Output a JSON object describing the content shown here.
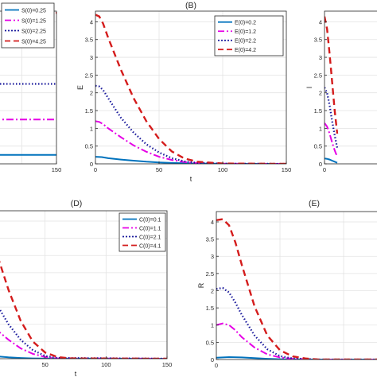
{
  "chart_data": [
    {
      "id": "A",
      "type": "line",
      "title": "",
      "xlabel": "",
      "ylabel": "",
      "xlim": [
        0,
        150
      ],
      "ylim": [
        0,
        4.3
      ],
      "xticks": [
        150
      ],
      "yticks": [],
      "grid": true,
      "legend_position": "top-right",
      "series": [
        {
          "name": "S(0)=0.25",
          "color": "#0072BD",
          "dash": "solid",
          "x": [
            0,
            150
          ],
          "y": [
            0.25,
            0.25
          ]
        },
        {
          "name": "S(0)=1.25",
          "color": "#E600E6",
          "dash": "dashdot",
          "x": [
            0,
            150
          ],
          "y": [
            1.25,
            1.25
          ]
        },
        {
          "name": "S(0)=2.25",
          "color": "#1A1A9C",
          "dash": "dotted",
          "x": [
            0,
            150
          ],
          "y": [
            2.25,
            2.25
          ]
        },
        {
          "name": "S(0)=4.25",
          "color": "#D41C1C",
          "dash": "dashed",
          "x": [
            0,
            150
          ],
          "y": [
            4.25,
            4.25
          ]
        }
      ]
    },
    {
      "id": "B",
      "type": "line",
      "title": "(B)",
      "xlabel": "t",
      "ylabel": "E",
      "xlim": [
        0,
        150
      ],
      "ylim": [
        0,
        4.3
      ],
      "xticks": [
        0,
        50,
        100,
        150
      ],
      "yticks": [
        0,
        0.5,
        1,
        1.5,
        2,
        2.5,
        3,
        3.5,
        4
      ],
      "grid": true,
      "legend_position": "top-right",
      "series": [
        {
          "name": "E(0)=0.2",
          "color": "#0072BD",
          "dash": "solid",
          "x": [
            0,
            5,
            10,
            20,
            30,
            40,
            50,
            60,
            70,
            80,
            100,
            150
          ],
          "y": [
            0.2,
            0.19,
            0.16,
            0.12,
            0.09,
            0.06,
            0.04,
            0.025,
            0.015,
            0.008,
            0.002,
            0
          ]
        },
        {
          "name": "E(0)=1.2",
          "color": "#E600E6",
          "dash": "dashdot",
          "x": [
            0,
            3,
            6,
            10,
            20,
            30,
            40,
            50,
            60,
            70,
            80,
            100,
            150
          ],
          "y": [
            1.2,
            1.18,
            1.12,
            1.0,
            0.75,
            0.52,
            0.34,
            0.2,
            0.11,
            0.05,
            0.02,
            0.003,
            0
          ]
        },
        {
          "name": "E(0)=2.2",
          "color": "#1A1A9C",
          "dash": "dotted",
          "x": [
            0,
            3,
            6,
            10,
            20,
            30,
            40,
            50,
            60,
            70,
            80,
            100,
            150
          ],
          "y": [
            2.2,
            2.18,
            2.08,
            1.85,
            1.3,
            0.88,
            0.55,
            0.32,
            0.16,
            0.07,
            0.03,
            0.004,
            0
          ]
        },
        {
          "name": "E(0)=4.2",
          "color": "#D41C1C",
          "dash": "dashed",
          "x": [
            0,
            3,
            6,
            10,
            20,
            30,
            40,
            50,
            60,
            70,
            80,
            100,
            150
          ],
          "y": [
            4.2,
            4.15,
            3.95,
            3.55,
            2.65,
            1.85,
            1.2,
            0.7,
            0.35,
            0.15,
            0.06,
            0.008,
            0
          ]
        }
      ]
    },
    {
      "id": "C",
      "type": "line",
      "title": "",
      "xlabel": "",
      "ylabel": "I",
      "xlim": [
        0,
        150
      ],
      "ylim": [
        0,
        4.3
      ],
      "xticks": [
        0
      ],
      "yticks": [
        0,
        0.5,
        1,
        1.5,
        2,
        2.5,
        3,
        3.5,
        4
      ],
      "grid": true,
      "legend_position": "top-right",
      "series": [
        {
          "name": "",
          "color": "#0072BD",
          "dash": "solid",
          "x": [
            0,
            2,
            4,
            6,
            8,
            10
          ],
          "y": [
            0.15,
            0.14,
            0.12,
            0.09,
            0.06,
            0.03
          ]
        },
        {
          "name": "",
          "color": "#E600E6",
          "dash": "dashdot",
          "x": [
            0,
            2,
            4,
            6,
            8,
            10
          ],
          "y": [
            1.15,
            1.05,
            0.85,
            0.6,
            0.38,
            0.2
          ]
        },
        {
          "name": "",
          "color": "#1A1A9C",
          "dash": "dotted",
          "x": [
            0,
            2,
            4,
            6,
            8,
            10
          ],
          "y": [
            2.15,
            2.0,
            1.65,
            1.2,
            0.8,
            0.45
          ]
        },
        {
          "name": "",
          "color": "#D41C1C",
          "dash": "dashed",
          "x": [
            0,
            2,
            4,
            6,
            8,
            10
          ],
          "y": [
            4.15,
            3.8,
            3.1,
            2.3,
            1.5,
            0.85
          ]
        }
      ]
    },
    {
      "id": "D",
      "type": "line",
      "title": "(D)",
      "xlabel": "t",
      "ylabel": "",
      "xlim": [
        0,
        150
      ],
      "ylim": [
        0,
        4.3
      ],
      "xticks": [
        50,
        100,
        150
      ],
      "yticks": [],
      "grid": true,
      "legend_position": "top-right",
      "series": [
        {
          "name": "C(0)=0.1",
          "color": "#0072BD",
          "dash": "solid",
          "x": [
            0,
            10,
            20,
            30,
            40,
            50,
            150
          ],
          "y": [
            0.1,
            0.07,
            0.04,
            0.02,
            0.01,
            0.005,
            0
          ]
        },
        {
          "name": "C(0)=1.1",
          "color": "#E600E6",
          "dash": "dashdot",
          "x": [
            0,
            10,
            20,
            30,
            40,
            50,
            60,
            150
          ],
          "y": [
            1.1,
            0.85,
            0.55,
            0.3,
            0.14,
            0.05,
            0.01,
            0
          ]
        },
        {
          "name": "C(0)=2.1",
          "color": "#1A1A9C",
          "dash": "dotted",
          "x": [
            0,
            10,
            20,
            30,
            40,
            50,
            60,
            150
          ],
          "y": [
            2.1,
            1.6,
            1.0,
            0.55,
            0.25,
            0.08,
            0.02,
            0
          ]
        },
        {
          "name": "C(0)=4.1",
          "color": "#D41C1C",
          "dash": "dashed",
          "x": [
            0,
            10,
            20,
            30,
            40,
            50,
            60,
            70,
            150
          ],
          "y": [
            4.1,
            3.1,
            2.0,
            1.1,
            0.5,
            0.18,
            0.05,
            0.01,
            0
          ]
        }
      ]
    },
    {
      "id": "E",
      "type": "line",
      "title": "(E)",
      "xlabel": "",
      "ylabel": "R",
      "xlim": [
        0,
        150
      ],
      "ylim": [
        0,
        4.3
      ],
      "xticks": [
        0
      ],
      "yticks": [
        0,
        0.5,
        1,
        1.5,
        2,
        2.5,
        3,
        3.5,
        4
      ],
      "grid": true,
      "legend_position": "top-right",
      "series": [
        {
          "name": "",
          "color": "#0072BD",
          "dash": "solid",
          "x": [
            0,
            5,
            10,
            20,
            30,
            40,
            50,
            60,
            80,
            150
          ],
          "y": [
            0.05,
            0.06,
            0.07,
            0.06,
            0.04,
            0.02,
            0.01,
            0.005,
            0,
            0
          ]
        },
        {
          "name": "",
          "color": "#E600E6",
          "dash": "dashdot",
          "x": [
            0,
            5,
            10,
            15,
            20,
            30,
            40,
            50,
            60,
            80,
            150
          ],
          "y": [
            1.0,
            1.05,
            1.0,
            0.85,
            0.65,
            0.35,
            0.15,
            0.06,
            0.02,
            0,
            0
          ]
        },
        {
          "name": "",
          "color": "#1A1A9C",
          "dash": "dotted",
          "x": [
            0,
            5,
            10,
            15,
            20,
            30,
            40,
            50,
            60,
            80,
            150
          ],
          "y": [
            2.05,
            2.08,
            1.95,
            1.65,
            1.3,
            0.7,
            0.3,
            0.1,
            0.03,
            0,
            0
          ]
        },
        {
          "name": "",
          "color": "#D41C1C",
          "dash": "dashed",
          "x": [
            0,
            5,
            10,
            15,
            20,
            30,
            40,
            50,
            60,
            70,
            80,
            150
          ],
          "y": [
            4.05,
            4.08,
            3.9,
            3.4,
            2.75,
            1.55,
            0.7,
            0.27,
            0.09,
            0.03,
            0,
            0
          ]
        }
      ]
    }
  ]
}
